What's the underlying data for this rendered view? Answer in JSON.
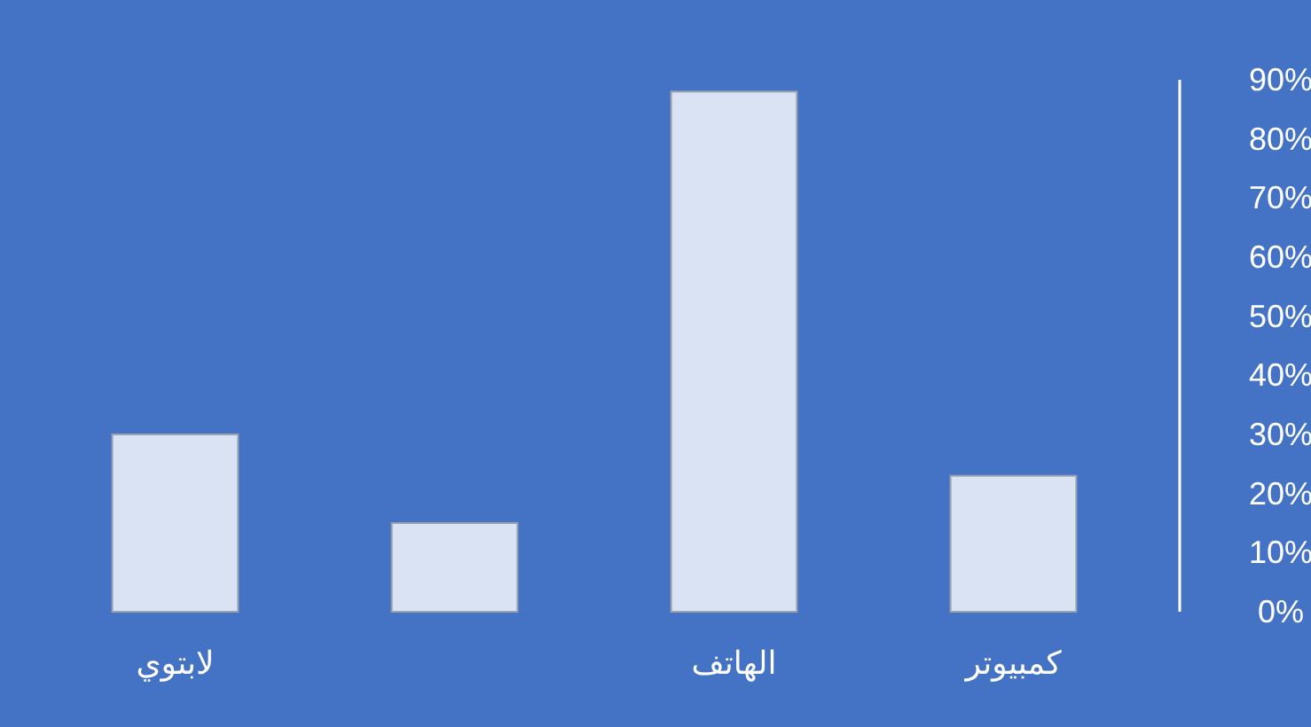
{
  "chart_data": {
    "type": "bar",
    "categories": [
      "لابتوي",
      null,
      "الهاتف",
      "كمبيوتر"
    ],
    "values": [
      30,
      15,
      88,
      23
    ],
    "color": "#dae3f3",
    "ylim": [
      0,
      90
    ],
    "yticks": [
      {
        "value": 0,
        "label": "0%"
      },
      {
        "value": 10,
        "label": "10%"
      },
      {
        "value": 20,
        "label": "20%"
      },
      {
        "value": 30,
        "label": "30%"
      },
      {
        "value": 40,
        "label": "40%"
      },
      {
        "value": 50,
        "label": "50%"
      },
      {
        "value": 60,
        "label": "60%"
      },
      {
        "value": 70,
        "label": "70%"
      },
      {
        "value": 80,
        "label": "80%"
      },
      {
        "value": 90,
        "label": "90%"
      }
    ]
  }
}
